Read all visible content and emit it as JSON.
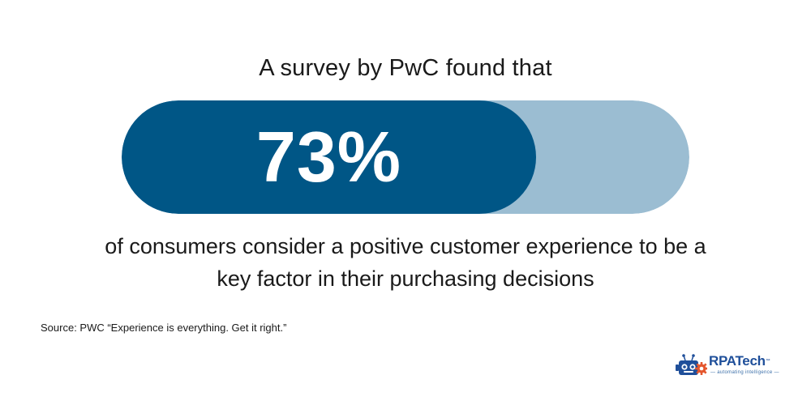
{
  "headline": "A survey by PwC found that",
  "stat": {
    "value_text": "73%",
    "fill_fraction": 0.73,
    "fill_color": "#005686",
    "track_color": "#9bbdd2"
  },
  "caption": {
    "line1": "of consumers consider a positive customer experience to be a",
    "line2": "key factor in their purchasing decisions"
  },
  "source": "Source: PWC “Experience is everything. Get it right.”",
  "logo": {
    "brand_rpa": "RPA",
    "brand_tech": "Tech",
    "trademark": "™",
    "tagline": "— automating intelligence —",
    "icon": "robot-gear-icon",
    "colors": {
      "primary": "#1f4f9a",
      "accent": "#e4572e"
    }
  }
}
